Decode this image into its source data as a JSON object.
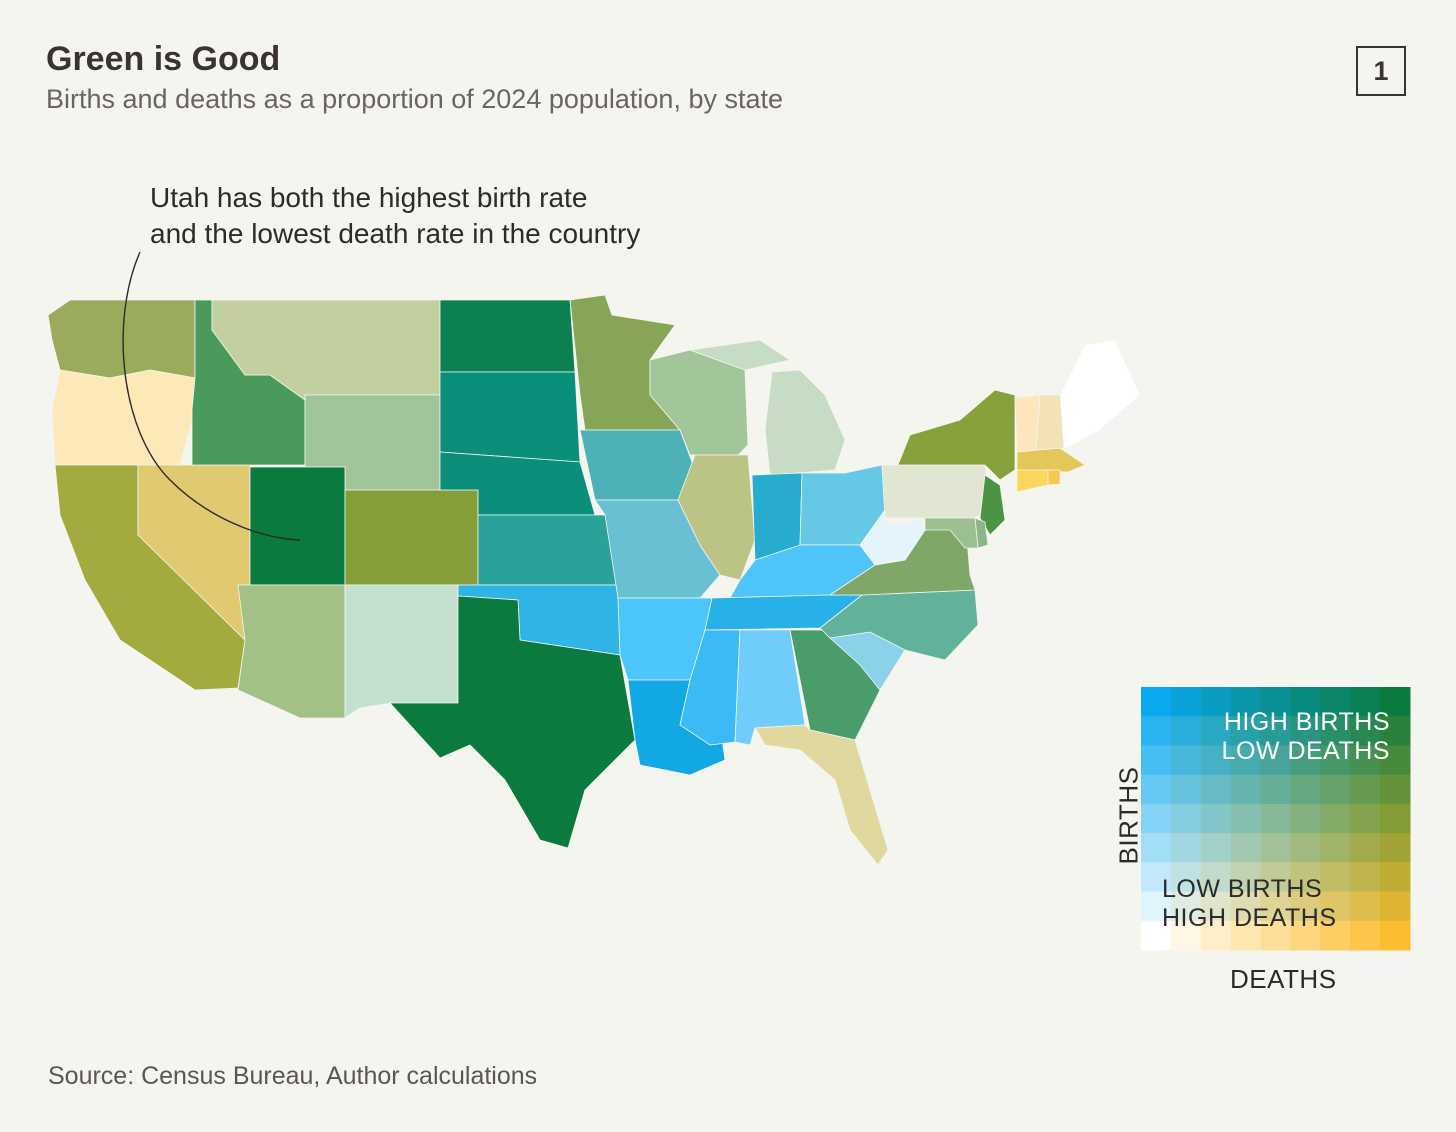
{
  "title": "Green is Good",
  "subtitle": "Births and deaths as a proportion of 2024 population, by state",
  "figure_number": "1",
  "annotation": {
    "line1": "Utah has both the highest birth rate",
    "line2": "and the lowest death rate in the country"
  },
  "legend": {
    "y_label": "BIRTHS",
    "x_label": "DEATHS",
    "top_right_line1": "HIGH BIRTHS",
    "top_right_line2": "LOW DEATHS",
    "bottom_left_line1": "LOW BIRTHS",
    "bottom_left_line2": "HIGH DEATHS",
    "corner_colors": {
      "high_births_low_deaths": "#0a7a3e",
      "high_births_high_deaths": "#0aa8ee",
      "low_births_low_deaths": "#ffffff",
      "low_births_high_deaths": "#fbbd30"
    }
  },
  "source": "Source: Census Bureau, Author calculations",
  "states": [
    {
      "name": "Washington",
      "color": "#9bab5c"
    },
    {
      "name": "Oregon",
      "color": "#fde8b8"
    },
    {
      "name": "California",
      "color": "#a3ab3f"
    },
    {
      "name": "Nevada",
      "color": "#e0c970"
    },
    {
      "name": "Idaho",
      "color": "#4a9a5c"
    },
    {
      "name": "Montana",
      "color": "#c2cf9f"
    },
    {
      "name": "Wyoming",
      "color": "#a1c49a"
    },
    {
      "name": "Utah",
      "color": "#0a7a3e"
    },
    {
      "name": "Colorado",
      "color": "#869e3a"
    },
    {
      "name": "Arizona",
      "color": "#a3c085"
    },
    {
      "name": "New Mexico",
      "color": "#c4e0cf"
    },
    {
      "name": "North Dakota",
      "color": "#0b8050"
    },
    {
      "name": "South Dakota",
      "color": "#0b8f7a"
    },
    {
      "name": "Nebraska",
      "color": "#0b8f7a"
    },
    {
      "name": "Kansas",
      "color": "#2aa199"
    },
    {
      "name": "Oklahoma",
      "color": "#2eb5e6"
    },
    {
      "name": "Texas",
      "color": "#0a7a3e"
    },
    {
      "name": "Minnesota",
      "color": "#86a556"
    },
    {
      "name": "Iowa",
      "color": "#4fb1b8"
    },
    {
      "name": "Missouri",
      "color": "#69c0d3"
    },
    {
      "name": "Arkansas",
      "color": "#4cc6fa"
    },
    {
      "name": "Louisiana",
      "color": "#11a8e3"
    },
    {
      "name": "Wisconsin",
      "color": "#a2c59a"
    },
    {
      "name": "Illinois",
      "color": "#bcc485"
    },
    {
      "name": "Michigan",
      "color": "#c6dcc4"
    },
    {
      "name": "Indiana",
      "color": "#27accf"
    },
    {
      "name": "Ohio",
      "color": "#66c8e7"
    },
    {
      "name": "Kentucky",
      "color": "#4fc4f9"
    },
    {
      "name": "Tennessee",
      "color": "#27b1e8"
    },
    {
      "name": "Mississippi",
      "color": "#3cbaf5"
    },
    {
      "name": "Alabama",
      "color": "#70cdfb"
    },
    {
      "name": "Georgia",
      "color": "#4a9c6a"
    },
    {
      "name": "Florida",
      "color": "#e0d89f"
    },
    {
      "name": "South Carolina",
      "color": "#8ad2ea"
    },
    {
      "name": "North Carolina",
      "color": "#62b19a"
    },
    {
      "name": "Virginia",
      "color": "#7fa868"
    },
    {
      "name": "West Virginia",
      "color": "#e4f4fa"
    },
    {
      "name": "Pennsylvania",
      "color": "#e1e6d3"
    },
    {
      "name": "New York",
      "color": "#86a03c"
    },
    {
      "name": "New Jersey",
      "color": "#4a9444"
    },
    {
      "name": "Delaware",
      "color": "#8cb58a"
    },
    {
      "name": "Maryland",
      "color": "#9cbf8f"
    },
    {
      "name": "Massachusetts",
      "color": "#e3c75a"
    },
    {
      "name": "Connecticut",
      "color": "#fbd65e"
    },
    {
      "name": "Rhode Island",
      "color": "#f6c94c"
    },
    {
      "name": "Vermont",
      "color": "#fde6bd"
    },
    {
      "name": "New Hampshire",
      "color": "#f2e2b5"
    },
    {
      "name": "Maine",
      "color": "#ffffff"
    }
  ]
}
